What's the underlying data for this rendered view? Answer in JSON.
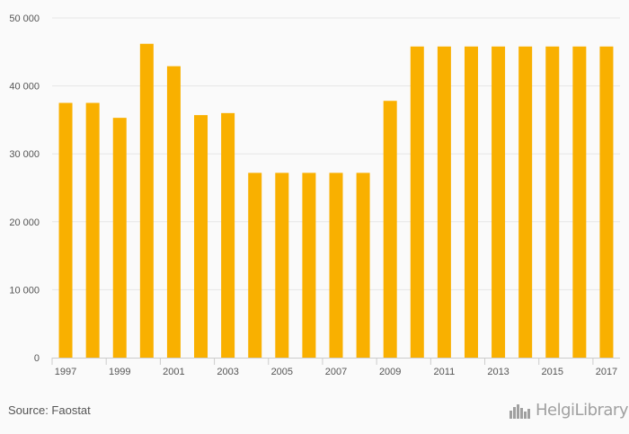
{
  "chart_data": {
    "type": "bar",
    "categories": [
      "1997",
      "1998",
      "1999",
      "2000",
      "2001",
      "2002",
      "2003",
      "2004",
      "2005",
      "2006",
      "2007",
      "2008",
      "2009",
      "2010",
      "2011",
      "2012",
      "2013",
      "2014",
      "2015",
      "2016",
      "2017"
    ],
    "x_tick_labels": [
      "1997",
      "1999",
      "2001",
      "2003",
      "2005",
      "2007",
      "2009",
      "2011",
      "2013",
      "2015",
      "2017"
    ],
    "values": [
      37500,
      37500,
      35300,
      46200,
      42900,
      35700,
      36000,
      27200,
      27200,
      27200,
      27200,
      27200,
      37800,
      45800,
      45800,
      45800,
      45800,
      45800,
      45800,
      45800,
      45800
    ],
    "ylim": [
      0,
      50000
    ],
    "y_ticks": [
      0,
      10000,
      20000,
      30000,
      40000,
      50000
    ],
    "y_tick_labels": [
      "0",
      "10 000",
      "20 000",
      "30 000",
      "40 000",
      "50 000"
    ],
    "title": "",
    "xlabel": "",
    "ylabel": "",
    "grid": true,
    "bar_color": "#f9b000"
  },
  "footer": {
    "source": "Source: Faostat",
    "logo_text": "HelgiLibrary",
    "logo_icon": "bar-chart-city-icon"
  }
}
